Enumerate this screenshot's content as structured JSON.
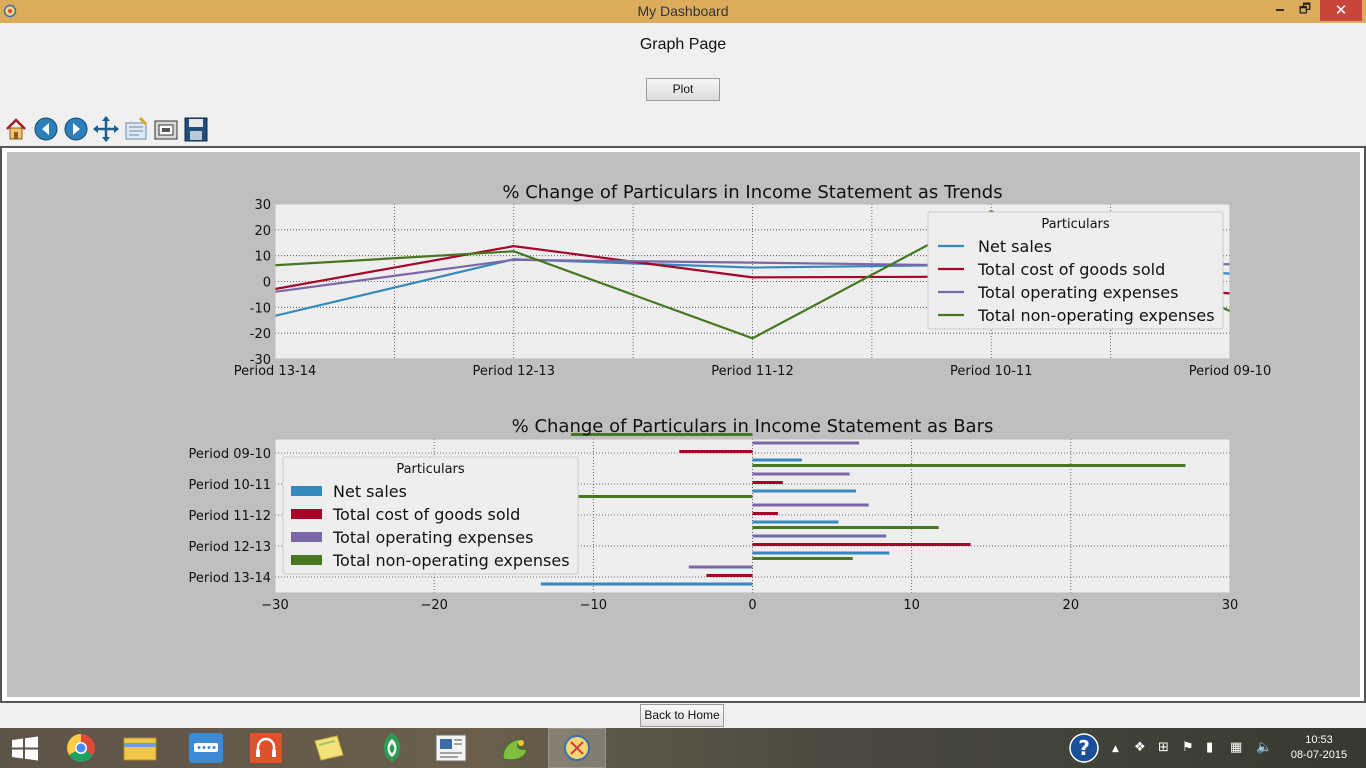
{
  "window": {
    "title": "My Dashboard",
    "minimize_glyph": "🗕",
    "maximize_glyph": "🗗",
    "close_glyph": "✕"
  },
  "page": {
    "heading": "Graph Page",
    "plot_button": "Plot",
    "back_button": "Back to Home"
  },
  "toolbar": {
    "tools": [
      "home-icon",
      "back-arrow-icon",
      "forward-arrow-icon",
      "pan-icon",
      "configure-subplots-icon",
      "zoom-icon",
      "save-icon"
    ]
  },
  "colors": {
    "net_sales": "#348abd",
    "cost_of_goods": "#a60628",
    "operating_expenses": "#7a68a6",
    "non_operating": "#467821",
    "plot_background": "#eeeeee",
    "figure_background": "#bfbfbf"
  },
  "chart_data": [
    {
      "type": "line",
      "title": "% Change of Particulars in Income Statement as Trends",
      "xlabel": "",
      "ylabel": "",
      "categories": [
        "Period 13-14",
        "Period 12-13",
        "Period 11-12",
        "Period 10-11",
        "Period 09-10"
      ],
      "ylim": [
        -30,
        30
      ],
      "yticks": [
        -30,
        -20,
        -10,
        0,
        10,
        20,
        30
      ],
      "grid": true,
      "legend": {
        "title": "Particulars",
        "placement": "upper right"
      },
      "series": [
        {
          "name": "Net sales",
          "values": [
            -13.3,
            8.6,
            5.4,
            6.5,
            3.1
          ]
        },
        {
          "name": "Total cost of goods sold",
          "values": [
            -2.9,
            13.7,
            1.6,
            1.9,
            -4.6
          ]
        },
        {
          "name": "Total operating expenses",
          "values": [
            -4.0,
            8.4,
            7.3,
            6.1,
            6.7
          ]
        },
        {
          "name": "Total non-operating expenses",
          "values": [
            6.3,
            11.7,
            -22.0,
            27.2,
            -11.4
          ]
        }
      ]
    },
    {
      "type": "bar",
      "orientation": "horizontal",
      "title": "% Change of Particulars in Income Statement as Bars",
      "xlabel": "",
      "ylabel": "",
      "categories": [
        "Period 13-14",
        "Period 12-13",
        "Period 11-12",
        "Period 10-11",
        "Period 09-10"
      ],
      "xlim": [
        -30,
        30
      ],
      "xticks": [
        -30,
        -20,
        -10,
        0,
        10,
        20,
        30
      ],
      "xtick_labels": [
        "−30",
        "−20",
        "−10",
        "0",
        "10",
        "20",
        "30"
      ],
      "grid": true,
      "legend": {
        "title": "Particulars",
        "placement": "upper left"
      },
      "series": [
        {
          "name": "Net sales",
          "values": [
            -13.3,
            8.6,
            5.4,
            6.5,
            3.1
          ]
        },
        {
          "name": "Total cost of goods sold",
          "values": [
            -2.9,
            13.7,
            1.6,
            1.9,
            -4.6
          ]
        },
        {
          "name": "Total operating expenses",
          "values": [
            -4.0,
            8.4,
            7.3,
            6.1,
            6.7
          ]
        },
        {
          "name": "Total non-operating expenses",
          "values": [
            6.3,
            11.7,
            -22.0,
            27.2,
            -11.4
          ]
        }
      ]
    }
  ],
  "taskbar": {
    "apps": [
      "windows-start-icon",
      "chrome-icon",
      "file-explorer-icon",
      "network-app-icon",
      "music-app-icon",
      "sticky-notes-icon",
      "app-icon",
      "document-app-icon",
      "python-app-icon",
      "dashboard-app-icon"
    ],
    "time": "10:53",
    "date": "08-07-2015"
  }
}
